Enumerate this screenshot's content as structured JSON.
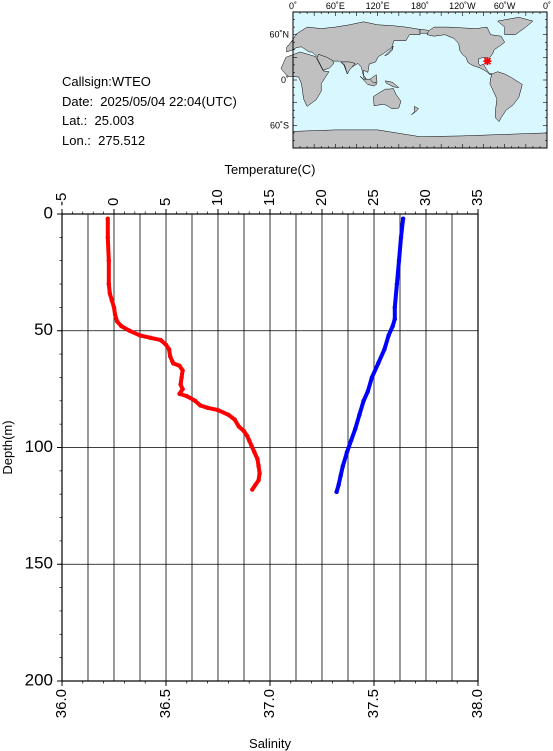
{
  "info": {
    "callsign": "Callsign:WTEO",
    "date": "Date:  2025/05/04 22:04(UTC)",
    "lat": "Lat.:  25.003",
    "lon": "Lon.:  275.512"
  },
  "map": {
    "top_labels": [
      "0˚",
      "60˚E",
      "120˚E",
      "180˚",
      "120˚W",
      "60˚W",
      "0˚"
    ],
    "lat_labels": [
      "60˚N",
      "0˚",
      "60˚S"
    ],
    "ocean_color": "#d9f7ff",
    "land_color": "#c0c0c0",
    "marker": {
      "lon": 275.512,
      "lat": 25.003,
      "color": "#ff0000"
    }
  },
  "chart_data": {
    "type": "line",
    "x_top_label": "Temperature(C)",
    "x_top_ticks": [
      -5,
      0,
      5,
      10,
      15,
      20,
      25,
      30,
      35
    ],
    "x_top_lim": [
      -5,
      35
    ],
    "x_bottom_label": "Salinity",
    "x_bottom_ticks": [
      "36.0",
      "36.5",
      "37.0",
      "37.5",
      "38.0"
    ],
    "x_bottom_lim": [
      36.0,
      38.0
    ],
    "ylabel": "Depth(m)",
    "y_ticks": [
      0,
      50,
      100,
      150,
      200
    ],
    "ylim": [
      0,
      200
    ],
    "y_inverted": true,
    "grid": true,
    "series": [
      {
        "axis": "temperature",
        "color": "#ff0000",
        "points": [
          [
            -0.6,
            2
          ],
          [
            -0.6,
            10
          ],
          [
            -0.5,
            20
          ],
          [
            -0.5,
            30
          ],
          [
            -0.4,
            34
          ],
          [
            -0.2,
            37
          ],
          [
            0,
            40
          ],
          [
            0.1,
            43
          ],
          [
            0.3,
            46
          ],
          [
            0.7,
            48
          ],
          [
            1.5,
            50
          ],
          [
            2.5,
            52
          ],
          [
            3.5,
            53
          ],
          [
            4.5,
            54
          ],
          [
            5,
            56
          ],
          [
            5.3,
            58
          ],
          [
            5.4,
            61
          ],
          [
            5.6,
            63
          ],
          [
            5.7,
            64
          ],
          [
            6.3,
            65
          ],
          [
            6.6,
            67
          ],
          [
            6.5,
            70
          ],
          [
            6.4,
            73
          ],
          [
            6.6,
            75
          ],
          [
            6.3,
            77
          ],
          [
            7,
            78
          ],
          [
            7.8,
            80
          ],
          [
            8.3,
            82
          ],
          [
            9,
            83
          ],
          [
            10,
            84
          ],
          [
            11,
            86
          ],
          [
            11.6,
            88
          ],
          [
            12,
            91
          ],
          [
            12.5,
            93
          ],
          [
            12.8,
            95
          ],
          [
            13,
            97
          ],
          [
            13.2,
            99
          ],
          [
            13.5,
            102
          ],
          [
            13.8,
            105
          ],
          [
            13.9,
            108
          ],
          [
            14,
            111
          ],
          [
            13.9,
            114
          ],
          [
            13.6,
            116
          ],
          [
            13.3,
            118
          ]
        ]
      },
      {
        "axis": "salinity",
        "color": "#0000ff",
        "points": [
          [
            37.64,
            2
          ],
          [
            37.63,
            10
          ],
          [
            37.62,
            20
          ],
          [
            37.61,
            30
          ],
          [
            37.6,
            40
          ],
          [
            37.6,
            45
          ],
          [
            37.59,
            48
          ],
          [
            37.57,
            52
          ],
          [
            37.55,
            58
          ],
          [
            37.52,
            64
          ],
          [
            37.49,
            70
          ],
          [
            37.47,
            76
          ],
          [
            37.45,
            80
          ],
          [
            37.43,
            86
          ],
          [
            37.41,
            92
          ],
          [
            37.39,
            97
          ],
          [
            37.37,
            102
          ],
          [
            37.35,
            108
          ],
          [
            37.34,
            112
          ],
          [
            37.33,
            116
          ],
          [
            37.32,
            119
          ]
        ]
      }
    ]
  }
}
